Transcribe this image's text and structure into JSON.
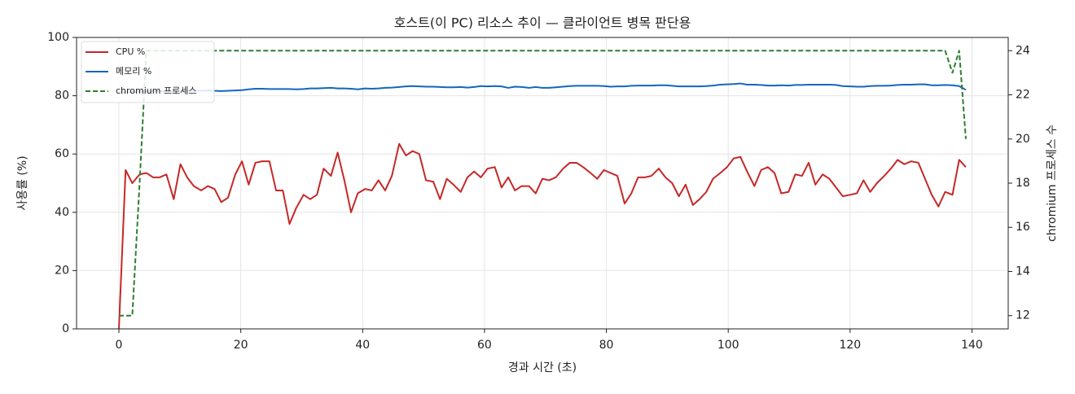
{
  "chart_data": {
    "type": "line",
    "title": "호스트(이 PC) 리소스 추이 — 클라이언트 병목 판단용",
    "x_label": "경과 시간 (초)",
    "y_label": "사용률 (%)",
    "y2_label": "chromium 프로세스 수",
    "x": [
      0,
      1.1,
      2.2,
      3.4,
      4.5,
      5.6,
      6.7,
      7.8,
      9,
      10.1,
      11.2,
      12.3,
      13.5,
      14.6,
      15.7,
      16.8,
      17.9,
      19.1,
      20.2,
      21.3,
      22.4,
      23.5,
      24.7,
      25.8,
      26.9,
      28,
      29.1,
      30.3,
      31.4,
      32.5,
      33.6,
      34.8,
      35.9,
      37,
      38.1,
      39.2,
      40.4,
      41.5,
      42.6,
      43.7,
      44.8,
      46,
      47.1,
      48.2,
      49.3,
      50.4,
      51.6,
      52.7,
      53.8,
      54.9,
      56.1,
      57.2,
      58.3,
      59.4,
      60.5,
      61.7,
      62.8,
      63.9,
      65,
      66.1,
      67.3,
      68.4,
      69.5,
      70.6,
      71.7,
      72.9,
      74,
      75.1,
      76.2,
      77.4,
      78.5,
      79.6,
      80.7,
      81.8,
      83,
      84.1,
      85.2,
      86.3,
      87.4,
      88.6,
      89.7,
      90.8,
      91.9,
      93,
      94.2,
      95.3,
      96.4,
      97.5,
      98.7,
      99.8,
      100.9,
      102,
      103.1,
      104.3,
      105.4,
      106.5,
      107.6,
      108.7,
      109.9,
      111,
      112.1,
      113.2,
      114.3,
      115.5,
      116.6,
      117.7,
      118.8,
      120,
      121.1,
      122.2,
      123.3,
      124.4,
      125.6,
      126.7,
      127.8,
      128.9,
      130,
      131.2,
      132.3,
      133.4,
      134.5,
      135.6,
      136.8,
      137.9,
      139
    ],
    "series": [
      {
        "name": "CPU %",
        "color": "#c62828",
        "linestyle": "solid",
        "axis": "y",
        "values": [
          0,
          54.5,
          50,
          53,
          53.5,
          52,
          52,
          53,
          44.5,
          56.5,
          52,
          49,
          47.5,
          49,
          48,
          43.5,
          45,
          53,
          57.5,
          49.5,
          57,
          57.5,
          57.5,
          47.5,
          47.5,
          36,
          41.5,
          46,
          44.5,
          46,
          55,
          52.5,
          60.5,
          51,
          40,
          46.5,
          48,
          47.5,
          51,
          47.5,
          52.5,
          63.5,
          59.5,
          61,
          60,
          51,
          50.5,
          44.5,
          51.5,
          49.5,
          47,
          52,
          54,
          52,
          55,
          55.5,
          48.5,
          52,
          47.5,
          49,
          49,
          46.5,
          51.5,
          51,
          52,
          55,
          57,
          57,
          55.5,
          53.5,
          51.5,
          54.5,
          53.5,
          52.5,
          43,
          46.5,
          52,
          52,
          52.5,
          55,
          52,
          50,
          45.5,
          49.5,
          42.5,
          44.5,
          47,
          51.5,
          53.5,
          55.5,
          58.5,
          59,
          54,
          49,
          54.5,
          55.5,
          53.5,
          46.5,
          47,
          53,
          52.5,
          57,
          49.5,
          53,
          51.5,
          48.5,
          45.5,
          46,
          46.5,
          51,
          47,
          50,
          52.5,
          55,
          58,
          56.5,
          57.5,
          57,
          51.5,
          46,
          42,
          47,
          46,
          58,
          55.5
        ]
      },
      {
        "name": "메모리 %",
        "color": "#1565c0",
        "linestyle": "solid",
        "axis": "y",
        "values": [
          81,
          81.2,
          81.3,
          81.4,
          81.5,
          81.5,
          81.6,
          81.5,
          81.5,
          81.6,
          81.6,
          81.7,
          81.7,
          81.8,
          81.7,
          81.6,
          81.7,
          81.8,
          81.9,
          82.2,
          82.4,
          82.4,
          82.3,
          82.3,
          82.3,
          82.3,
          82.2,
          82.3,
          82.5,
          82.5,
          82.6,
          82.7,
          82.5,
          82.5,
          82.4,
          82.2,
          82.5,
          82.4,
          82.5,
          82.7,
          82.8,
          83,
          83.2,
          83.3,
          83.2,
          83.1,
          83.1,
          83,
          82.9,
          82.9,
          83,
          82.8,
          83,
          83.3,
          83.2,
          83.3,
          83.2,
          82.7,
          83.1,
          83,
          82.7,
          83,
          82.7,
          82.7,
          82.9,
          83.1,
          83.3,
          83.4,
          83.4,
          83.4,
          83.4,
          83.3,
          83.1,
          83.2,
          83.2,
          83.4,
          83.5,
          83.5,
          83.5,
          83.6,
          83.6,
          83.4,
          83.2,
          83.2,
          83.2,
          83.2,
          83.3,
          83.5,
          83.8,
          83.9,
          84,
          84.2,
          83.8,
          83.8,
          83.7,
          83.5,
          83.5,
          83.6,
          83.5,
          83.7,
          83.7,
          83.8,
          83.8,
          83.8,
          83.8,
          83.7,
          83.3,
          83.2,
          83.1,
          83.1,
          83.3,
          83.4,
          83.4,
          83.5,
          83.7,
          83.8,
          83.8,
          83.9,
          83.9,
          83.6,
          83.6,
          83.7,
          83.6,
          83.3,
          82
        ]
      },
      {
        "name": "chromium 프로세스",
        "color": "#2e7d32",
        "linestyle": "dashed",
        "axis": "y2",
        "values": [
          12,
          12,
          12,
          18,
          24,
          24,
          24,
          24,
          24,
          24,
          24,
          24,
          24,
          24,
          24,
          24,
          24,
          24,
          24,
          24,
          24,
          24,
          24,
          24,
          24,
          24,
          24,
          24,
          24,
          24,
          24,
          24,
          24,
          24,
          24,
          24,
          24,
          24,
          24,
          24,
          24,
          24,
          24,
          24,
          24,
          24,
          24,
          24,
          24,
          24,
          24,
          24,
          24,
          24,
          24,
          24,
          24,
          24,
          24,
          24,
          24,
          24,
          24,
          24,
          24,
          24,
          24,
          24,
          24,
          24,
          24,
          24,
          24,
          24,
          24,
          24,
          24,
          24,
          24,
          24,
          24,
          24,
          24,
          24,
          24,
          24,
          24,
          24,
          24,
          24,
          24,
          24,
          24,
          24,
          24,
          24,
          24,
          24,
          24,
          24,
          24,
          24,
          24,
          24,
          24,
          24,
          24,
          24,
          24,
          24,
          24,
          24,
          24,
          24,
          24,
          24,
          24,
          24,
          24,
          24,
          24,
          24,
          23,
          24,
          20
        ]
      }
    ],
    "xlim": [
      -6.95,
      145.95
    ],
    "xticks": [
      0,
      20,
      40,
      60,
      80,
      100,
      120,
      140
    ],
    "ylim": [
      0,
      100
    ],
    "yticks": [
      0,
      20,
      40,
      60,
      80,
      100
    ],
    "y2lim": [
      11.4,
      24.6
    ],
    "y2ticks": [
      12,
      14,
      16,
      18,
      20,
      22,
      24
    ],
    "grid": true,
    "legend": "upper-left"
  }
}
